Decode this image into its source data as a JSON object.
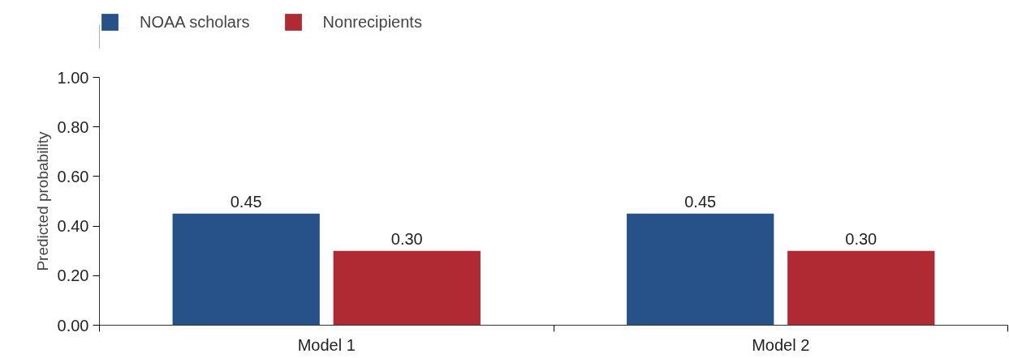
{
  "chart_data": {
    "type": "bar",
    "ylabel": "Predicted probability",
    "categories": [
      "Model 1",
      "Model 2"
    ],
    "series": [
      {
        "name": "NOAA scholars",
        "color": "#265289",
        "values": [
          0.45,
          0.45
        ]
      },
      {
        "name": "Nonrecipients",
        "color": "#b02a34",
        "values": [
          0.3,
          0.3
        ]
      }
    ],
    "ylim": [
      0,
      1
    ],
    "yticks": [
      {
        "value": 0,
        "label": "0.00"
      },
      {
        "value": 0.2,
        "label": "0.20"
      },
      {
        "value": 0.4,
        "label": "0.40"
      },
      {
        "value": 0.6,
        "label": "0.60"
      },
      {
        "value": 0.8,
        "label": "0.80"
      },
      {
        "value": 1,
        "label": "1.00"
      }
    ],
    "value_labels": [
      [
        "0.45",
        "0.45"
      ],
      [
        "0.30",
        "0.30"
      ]
    ],
    "grid": false,
    "legend": "top left"
  }
}
